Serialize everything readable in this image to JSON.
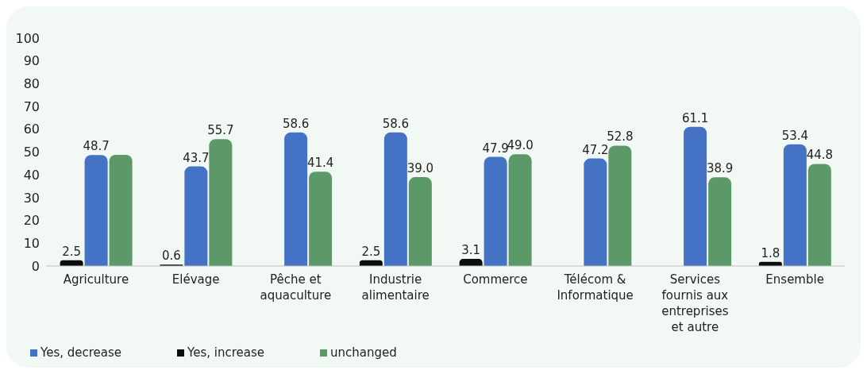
{
  "chart_data": {
    "type": "bar",
    "categories": [
      "Agriculture",
      "Elévage",
      "Pêche et aquaculture",
      "Industrie alimentaire",
      "Commerce",
      "Télécom & Informatique",
      "Services fournis aux entreprises et autre",
      "Ensemble"
    ],
    "series": [
      {
        "name": "Yes, increase",
        "color": "#0d0d0d",
        "values": [
          2.5,
          0.6,
          null,
          2.5,
          3.1,
          null,
          null,
          1.8
        ],
        "value_labels": [
          "2.5",
          "0.6",
          null,
          "2.5",
          "3.1",
          null,
          null,
          "1.8"
        ]
      },
      {
        "name": "Yes, decrease",
        "color": "#4472c4",
        "values": [
          48.7,
          43.7,
          58.6,
          58.6,
          47.9,
          47.2,
          61.1,
          53.4
        ],
        "value_labels": [
          "48.7",
          "43.7",
          "58.6",
          "58.6",
          "47.9",
          "47.2",
          "61.1",
          "53.4"
        ]
      },
      {
        "name": "unchanged",
        "color": "#5b9a68",
        "values": [
          48.8,
          55.7,
          41.4,
          39.0,
          49.0,
          52.8,
          38.9,
          44.8
        ],
        "value_labels": [
          null,
          "55.7",
          "41.4",
          "39.0",
          "49.0",
          "52.8",
          "38.9",
          "44.8"
        ]
      }
    ],
    "ylim": [
      0,
      100
    ],
    "yticks": [
      0,
      10,
      20,
      30,
      40,
      50,
      60,
      70,
      80,
      90,
      100
    ],
    "grid": false,
    "legend": "bottom left"
  }
}
